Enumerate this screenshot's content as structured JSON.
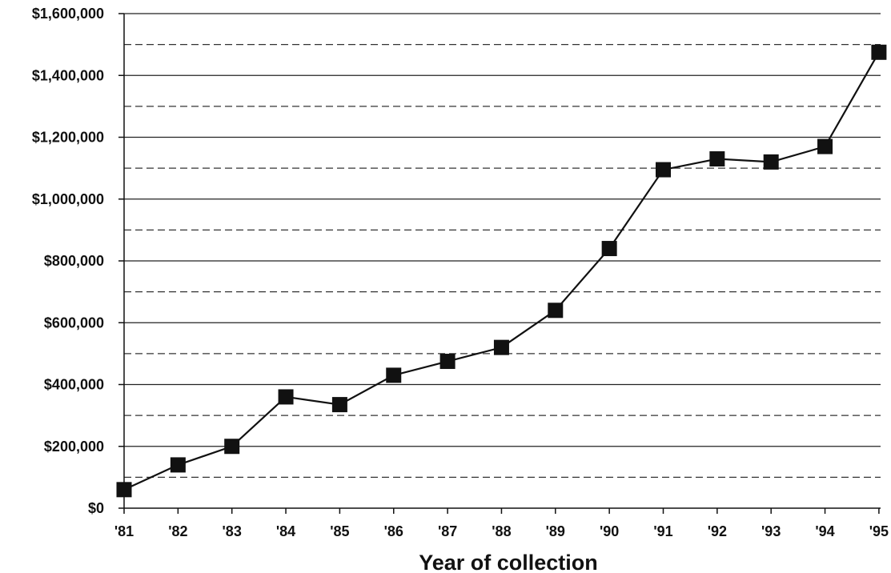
{
  "chart_data": {
    "type": "line",
    "title": "",
    "xlabel": "Year of collection",
    "ylabel": "",
    "categories": [
      "'81",
      "'82",
      "'83",
      "'84",
      "'85",
      "'86",
      "'87",
      "'88",
      "'89",
      "'90",
      "'91",
      "'92",
      "'93",
      "'94",
      "'95"
    ],
    "series": [
      {
        "values": [
          60000,
          140000,
          200000,
          360000,
          335000,
          430000,
          475000,
          520000,
          640000,
          840000,
          1095000,
          1130000,
          1120000,
          1170000,
          1475000
        ],
        "color": "#111111",
        "marker": "square"
      }
    ],
    "ylim": [
      0,
      1600000
    ],
    "y_ticks": [
      0,
      200000,
      400000,
      600000,
      800000,
      1000000,
      1200000,
      1400000,
      1600000
    ],
    "y_tick_labels": [
      "$0",
      "$200,000",
      "$400,000",
      "$600,000",
      "$800,000",
      "$1,000,000",
      "$1,200,000",
      "$1,400,000",
      "$1,600,000"
    ],
    "minor_gridlines": [
      100000,
      300000,
      500000,
      700000,
      900000,
      1100000,
      1300000,
      1500000
    ],
    "grid": true,
    "legend": "none"
  }
}
